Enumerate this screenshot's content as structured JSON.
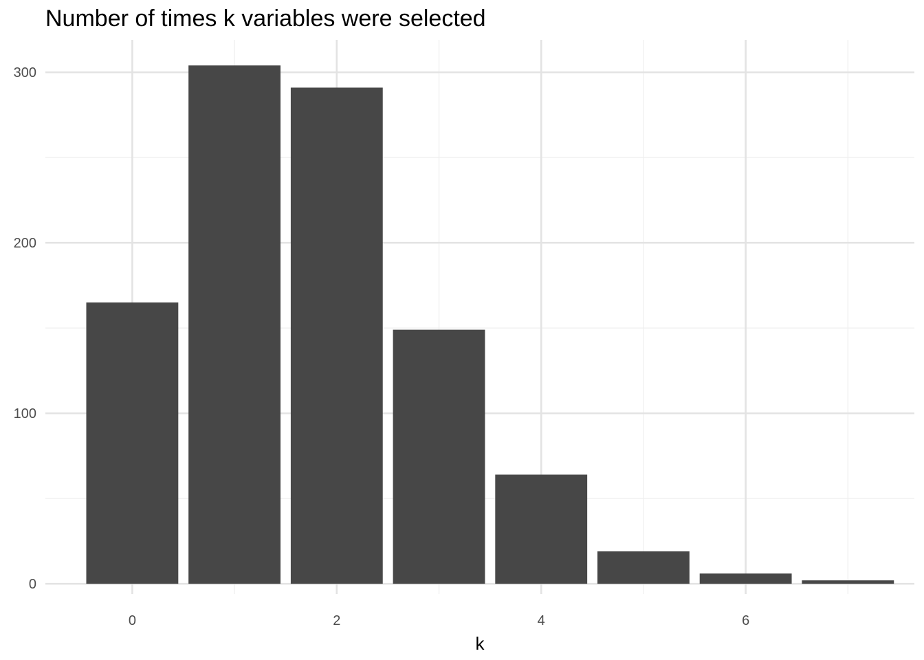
{
  "chart_data": {
    "type": "bar",
    "title": "Number of times k variables were selected",
    "xlabel": "k",
    "ylabel": "",
    "categories": [
      0,
      1,
      2,
      3,
      4,
      5,
      6,
      7
    ],
    "values": [
      165,
      304,
      291,
      149,
      64,
      19,
      6,
      2
    ],
    "xlim": [
      -0.85,
      7.65
    ],
    "ylim": [
      -6,
      319
    ],
    "x_ticks": [
      0,
      2,
      4,
      6
    ],
    "x_tick_labels": [
      "0",
      "2",
      "4",
      "6"
    ],
    "y_ticks": [
      0,
      100,
      200,
      300
    ],
    "y_tick_labels": [
      "0",
      "100",
      "200",
      "300"
    ],
    "bar_width": 0.9,
    "grid": true,
    "colors": {
      "bar": "#474747",
      "grid_major": "#e3e3e3",
      "grid_minor": "#efefef",
      "background": "#ffffff"
    }
  }
}
